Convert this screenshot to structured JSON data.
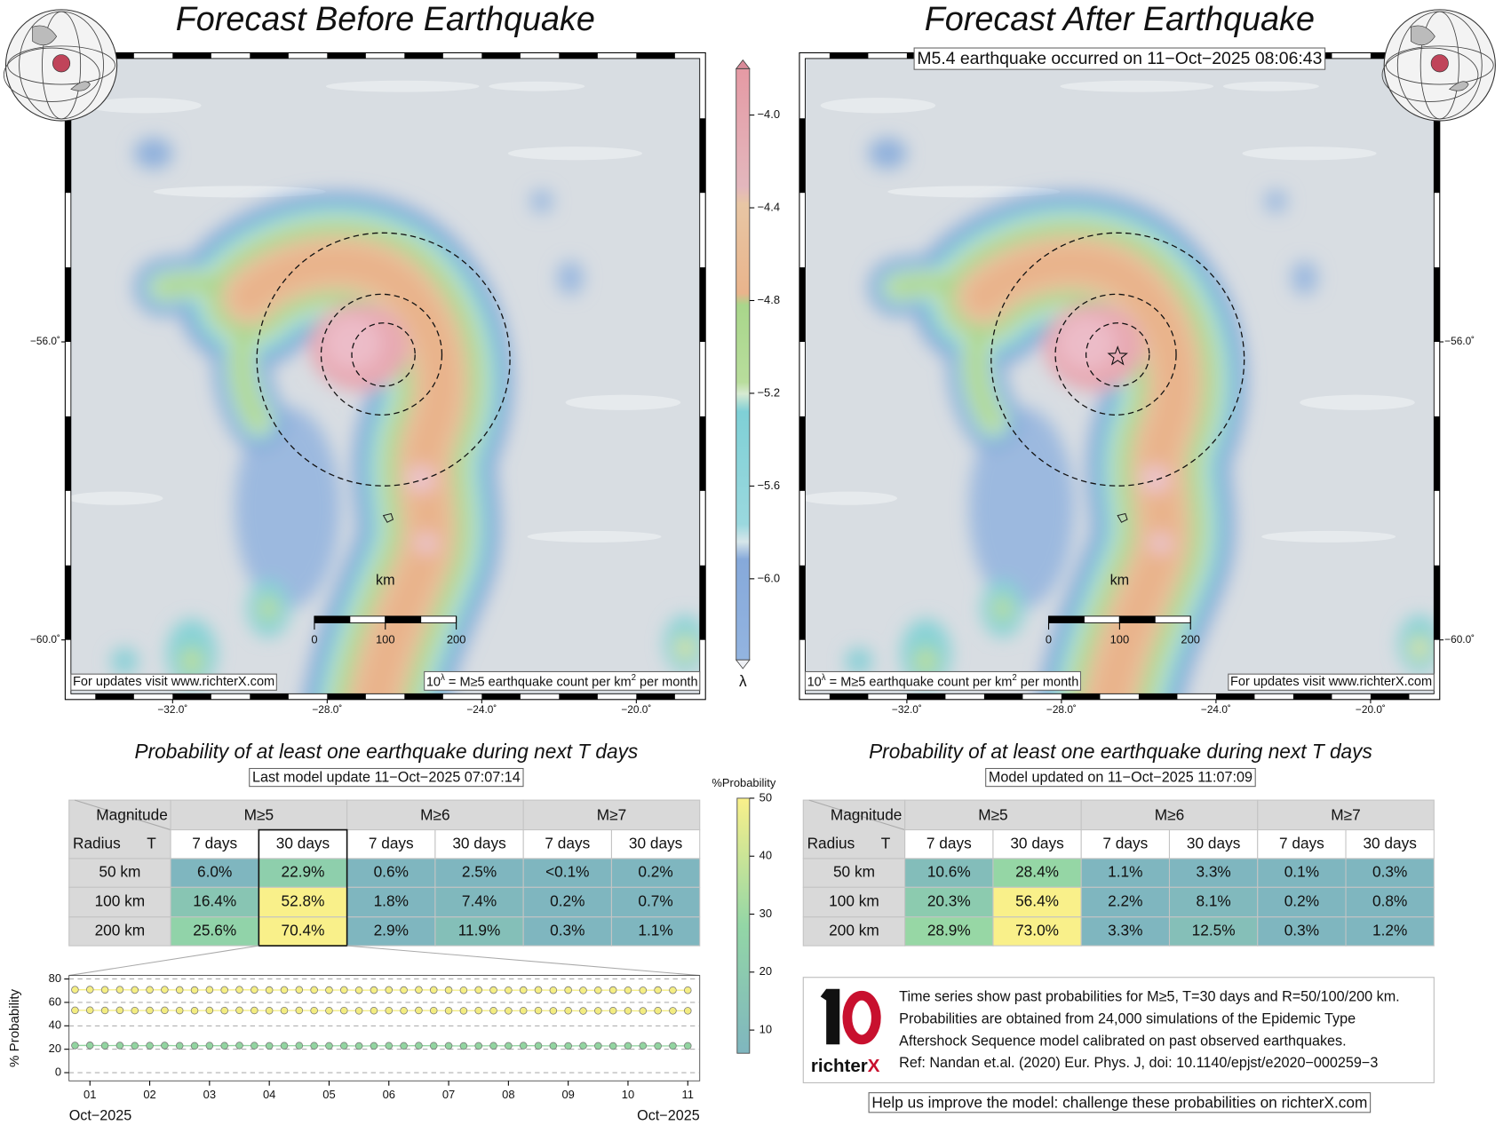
{
  "left_panel": {
    "title": "Forecast Before Earthquake",
    "map": {
      "lon_range": [
        -34.78,
        -18.21
      ],
      "lat_range": [
        -60.8,
        -52.12
      ],
      "lon_ticks": [
        {
          "value": -32,
          "label": "−32.0˚"
        },
        {
          "value": -28,
          "label": "−28.0˚"
        },
        {
          "value": -24,
          "label": "−24.0˚"
        },
        {
          "value": -20,
          "label": "−20.0˚"
        }
      ],
      "lat_ticks": [
        {
          "value": -56,
          "label": "−56.0˚"
        },
        {
          "value": -60,
          "label": "−60.0˚"
        }
      ],
      "scale_bar": {
        "label": "km",
        "ticks": [
          0,
          100,
          200
        ]
      },
      "note_updates": "For updates visit www.richterX.com",
      "note_units": [
        "10",
        "λ",
        " = M≥5 earthquake count per km",
        "2",
        " per month"
      ]
    },
    "probability_title": "Probability of at least one earthquake during next T days",
    "model_update": "Last model update 11−Oct−2025 07:07:14",
    "table": {
      "corner_top": "Magnitude",
      "corner_left": "Radius",
      "corner_right": "T",
      "magnitudes": [
        "M≥5",
        "M≥6",
        "M≥7"
      ],
      "durations": [
        "7 days",
        "30 days",
        "7 days",
        "30 days",
        "7 days",
        "30 days"
      ],
      "rows": [
        {
          "radius": "50 km",
          "cells": [
            "6.0%",
            "22.9%",
            "0.6%",
            "2.5%",
            "<0.1%",
            "0.2%"
          ]
        },
        {
          "radius": "100 km",
          "cells": [
            "16.4%",
            "52.8%",
            "1.8%",
            "7.4%",
            "0.2%",
            "0.7%"
          ]
        },
        {
          "radius": "200 km",
          "cells": [
            "25.6%",
            "70.4%",
            "2.9%",
            "11.9%",
            "0.3%",
            "1.1%"
          ]
        }
      ]
    }
  },
  "right_panel": {
    "title": "Forecast After Earthquake",
    "event_note": "M5.4 earthquake occurred on 11−Oct−2025 08:06:43",
    "map": {
      "lon_range": [
        -34.78,
        -18.21
      ],
      "lat_range": [
        -60.8,
        -52.12
      ],
      "lon_ticks": [
        {
          "value": -32,
          "label": "−32.0˚"
        },
        {
          "value": -28,
          "label": "−28.0˚"
        },
        {
          "value": -24,
          "label": "−24.0˚"
        },
        {
          "value": -20,
          "label": "−20.0˚"
        }
      ],
      "lat_ticks": [
        {
          "value": -56,
          "label": "−56.0˚"
        },
        {
          "value": -60,
          "label": "−60.0˚"
        }
      ],
      "scale_bar": {
        "label": "km",
        "ticks": [
          0,
          100,
          200
        ]
      },
      "note_updates": "For updates visit www.richterX.com",
      "note_units": [
        "10",
        "λ",
        " = M≥5 earthquake count per km",
        "2",
        " per month"
      ]
    },
    "probability_title": "Probability of at least one earthquake during next T days",
    "model_update": "Model updated on 11−Oct−2025 11:07:09",
    "table": {
      "corner_top": "Magnitude",
      "corner_left": "Radius",
      "corner_right": "T",
      "magnitudes": [
        "M≥5",
        "M≥6",
        "M≥7"
      ],
      "durations": [
        "7 days",
        "30 days",
        "7 days",
        "30 days",
        "7 days",
        "30 days"
      ],
      "rows": [
        {
          "radius": "50 km",
          "cells": [
            "10.6%",
            "28.4%",
            "1.1%",
            "3.3%",
            "0.1%",
            "0.3%"
          ]
        },
        {
          "radius": "100 km",
          "cells": [
            "20.3%",
            "56.4%",
            "2.2%",
            "8.1%",
            "0.2%",
            "0.8%"
          ]
        },
        {
          "radius": "200 km",
          "cells": [
            "28.9%",
            "73.0%",
            "3.3%",
            "12.5%",
            "0.3%",
            "1.2%"
          ]
        }
      ]
    },
    "info": {
      "lines": [
        "Time series show past probabilities for M≥5, T=30 days and R=50/100/200 km.",
        "Probabilities are obtained from 24,000 simulations of the Epidemic Type",
        "Aftershock Sequence model calibrated on past observed earthquakes.",
        "Ref: Nandan et.al. (2020) Eur. Phys. J, doi: 10.1140/epjst/e2020−000259−3"
      ],
      "logo_text": [
        "richter",
        "X"
      ]
    },
    "help": "Help us improve the model: challenge these probabilities on richterX.com"
  },
  "lambda_scale": {
    "label": "λ",
    "lim": [
      -6.35,
      -3.8
    ],
    "ticks": [
      {
        "value": -4,
        "label": "−4.0"
      },
      {
        "value": -4.4,
        "label": "−4.4"
      },
      {
        "value": -4.8,
        "label": "−4.8"
      },
      {
        "value": -5.2,
        "label": "−5.2"
      },
      {
        "value": -5.6,
        "label": "−5.6"
      },
      {
        "value": -6,
        "label": "−6.0"
      }
    ]
  },
  "probability_scale": {
    "label": "%Probability",
    "lim": [
      6,
      50
    ],
    "ticks": [
      10,
      20,
      30,
      40,
      50
    ],
    "colors": [
      "#7fb6bf",
      "#93d6a6",
      "#f9f08a"
    ]
  },
  "chart_data": {
    "type": "scatter",
    "y_label": "% Probability",
    "x": [
      0.75,
      1,
      1.25,
      1.5,
      1.75,
      2,
      2.25,
      2.5,
      2.75,
      3,
      3.25,
      3.5,
      3.75,
      4,
      4.25,
      4.5,
      4.75,
      5,
      5.25,
      5.5,
      5.75,
      6,
      6.25,
      6.5,
      6.75,
      7,
      7.25,
      7.5,
      7.75,
      8,
      8.25,
      8.5,
      8.75,
      9,
      9.25,
      9.5,
      9.75,
      10,
      10.25,
      10.5,
      10.75,
      11
    ],
    "xlim": [
      0.65,
      11.2
    ],
    "xticks": [
      {
        "value": 1,
        "label": "01"
      },
      {
        "value": 2,
        "label": "02"
      },
      {
        "value": 3,
        "label": "03"
      },
      {
        "value": 4,
        "label": "04"
      },
      {
        "value": 5,
        "label": "05"
      },
      {
        "value": 6,
        "label": "06"
      },
      {
        "value": 7,
        "label": "07"
      },
      {
        "value": 8,
        "label": "08"
      },
      {
        "value": 9,
        "label": "09"
      },
      10,
      11
    ],
    "x_sublabels": [
      "Oct−2025",
      "Oct−2025"
    ],
    "ylim": [
      -7,
      83
    ],
    "yticks": [
      0,
      20,
      40,
      60,
      80
    ],
    "grid": true,
    "series": [
      {
        "color": "#f5ee84",
        "values": [
          70.8,
          70.9,
          70.7,
          70.8,
          70.6,
          70.7,
          70.8,
          70.6,
          70.5,
          70.7,
          70.6,
          70.8,
          70.7,
          70.5,
          70.6,
          70.7,
          70.6,
          70.5,
          70.6,
          70.4,
          70.5,
          70.6,
          70.5,
          70.7,
          70.6,
          70.5,
          70.4,
          70.6,
          70.5,
          70.4,
          70.5,
          70.6,
          70.4,
          70.5,
          70.3,
          70.4,
          70.5,
          70.4,
          70.3,
          70.5,
          70.4,
          70.4
        ]
      },
      {
        "color": "#f3ec80",
        "values": [
          53.2,
          53.3,
          53.1,
          53.2,
          53.0,
          53.1,
          53.2,
          53.0,
          52.9,
          53.1,
          53.0,
          53.2,
          53.1,
          52.9,
          53.0,
          53.1,
          53.0,
          52.9,
          53.0,
          52.8,
          52.9,
          53.0,
          52.9,
          53.1,
          53.0,
          52.9,
          52.8,
          53.0,
          52.9,
          52.8,
          52.9,
          53.0,
          52.8,
          52.9,
          52.7,
          52.8,
          52.9,
          52.8,
          52.7,
          52.9,
          52.8,
          52.8
        ]
      },
      {
        "color": "#92d4a0",
        "values": [
          23.2,
          23.3,
          23.1,
          23.2,
          23.0,
          23.1,
          23.2,
          23.0,
          22.9,
          23.1,
          23.0,
          23.2,
          23.1,
          22.9,
          23.0,
          23.1,
          23.0,
          22.9,
          23.0,
          22.8,
          22.9,
          23.0,
          22.9,
          23.1,
          23.0,
          22.9,
          22.8,
          22.9,
          23.0,
          22.9,
          23.1,
          23.0,
          22.9,
          22.8,
          23.0,
          22.9,
          22.8,
          22.9,
          23.0,
          22.8,
          22.9,
          22.9
        ]
      }
    ]
  }
}
